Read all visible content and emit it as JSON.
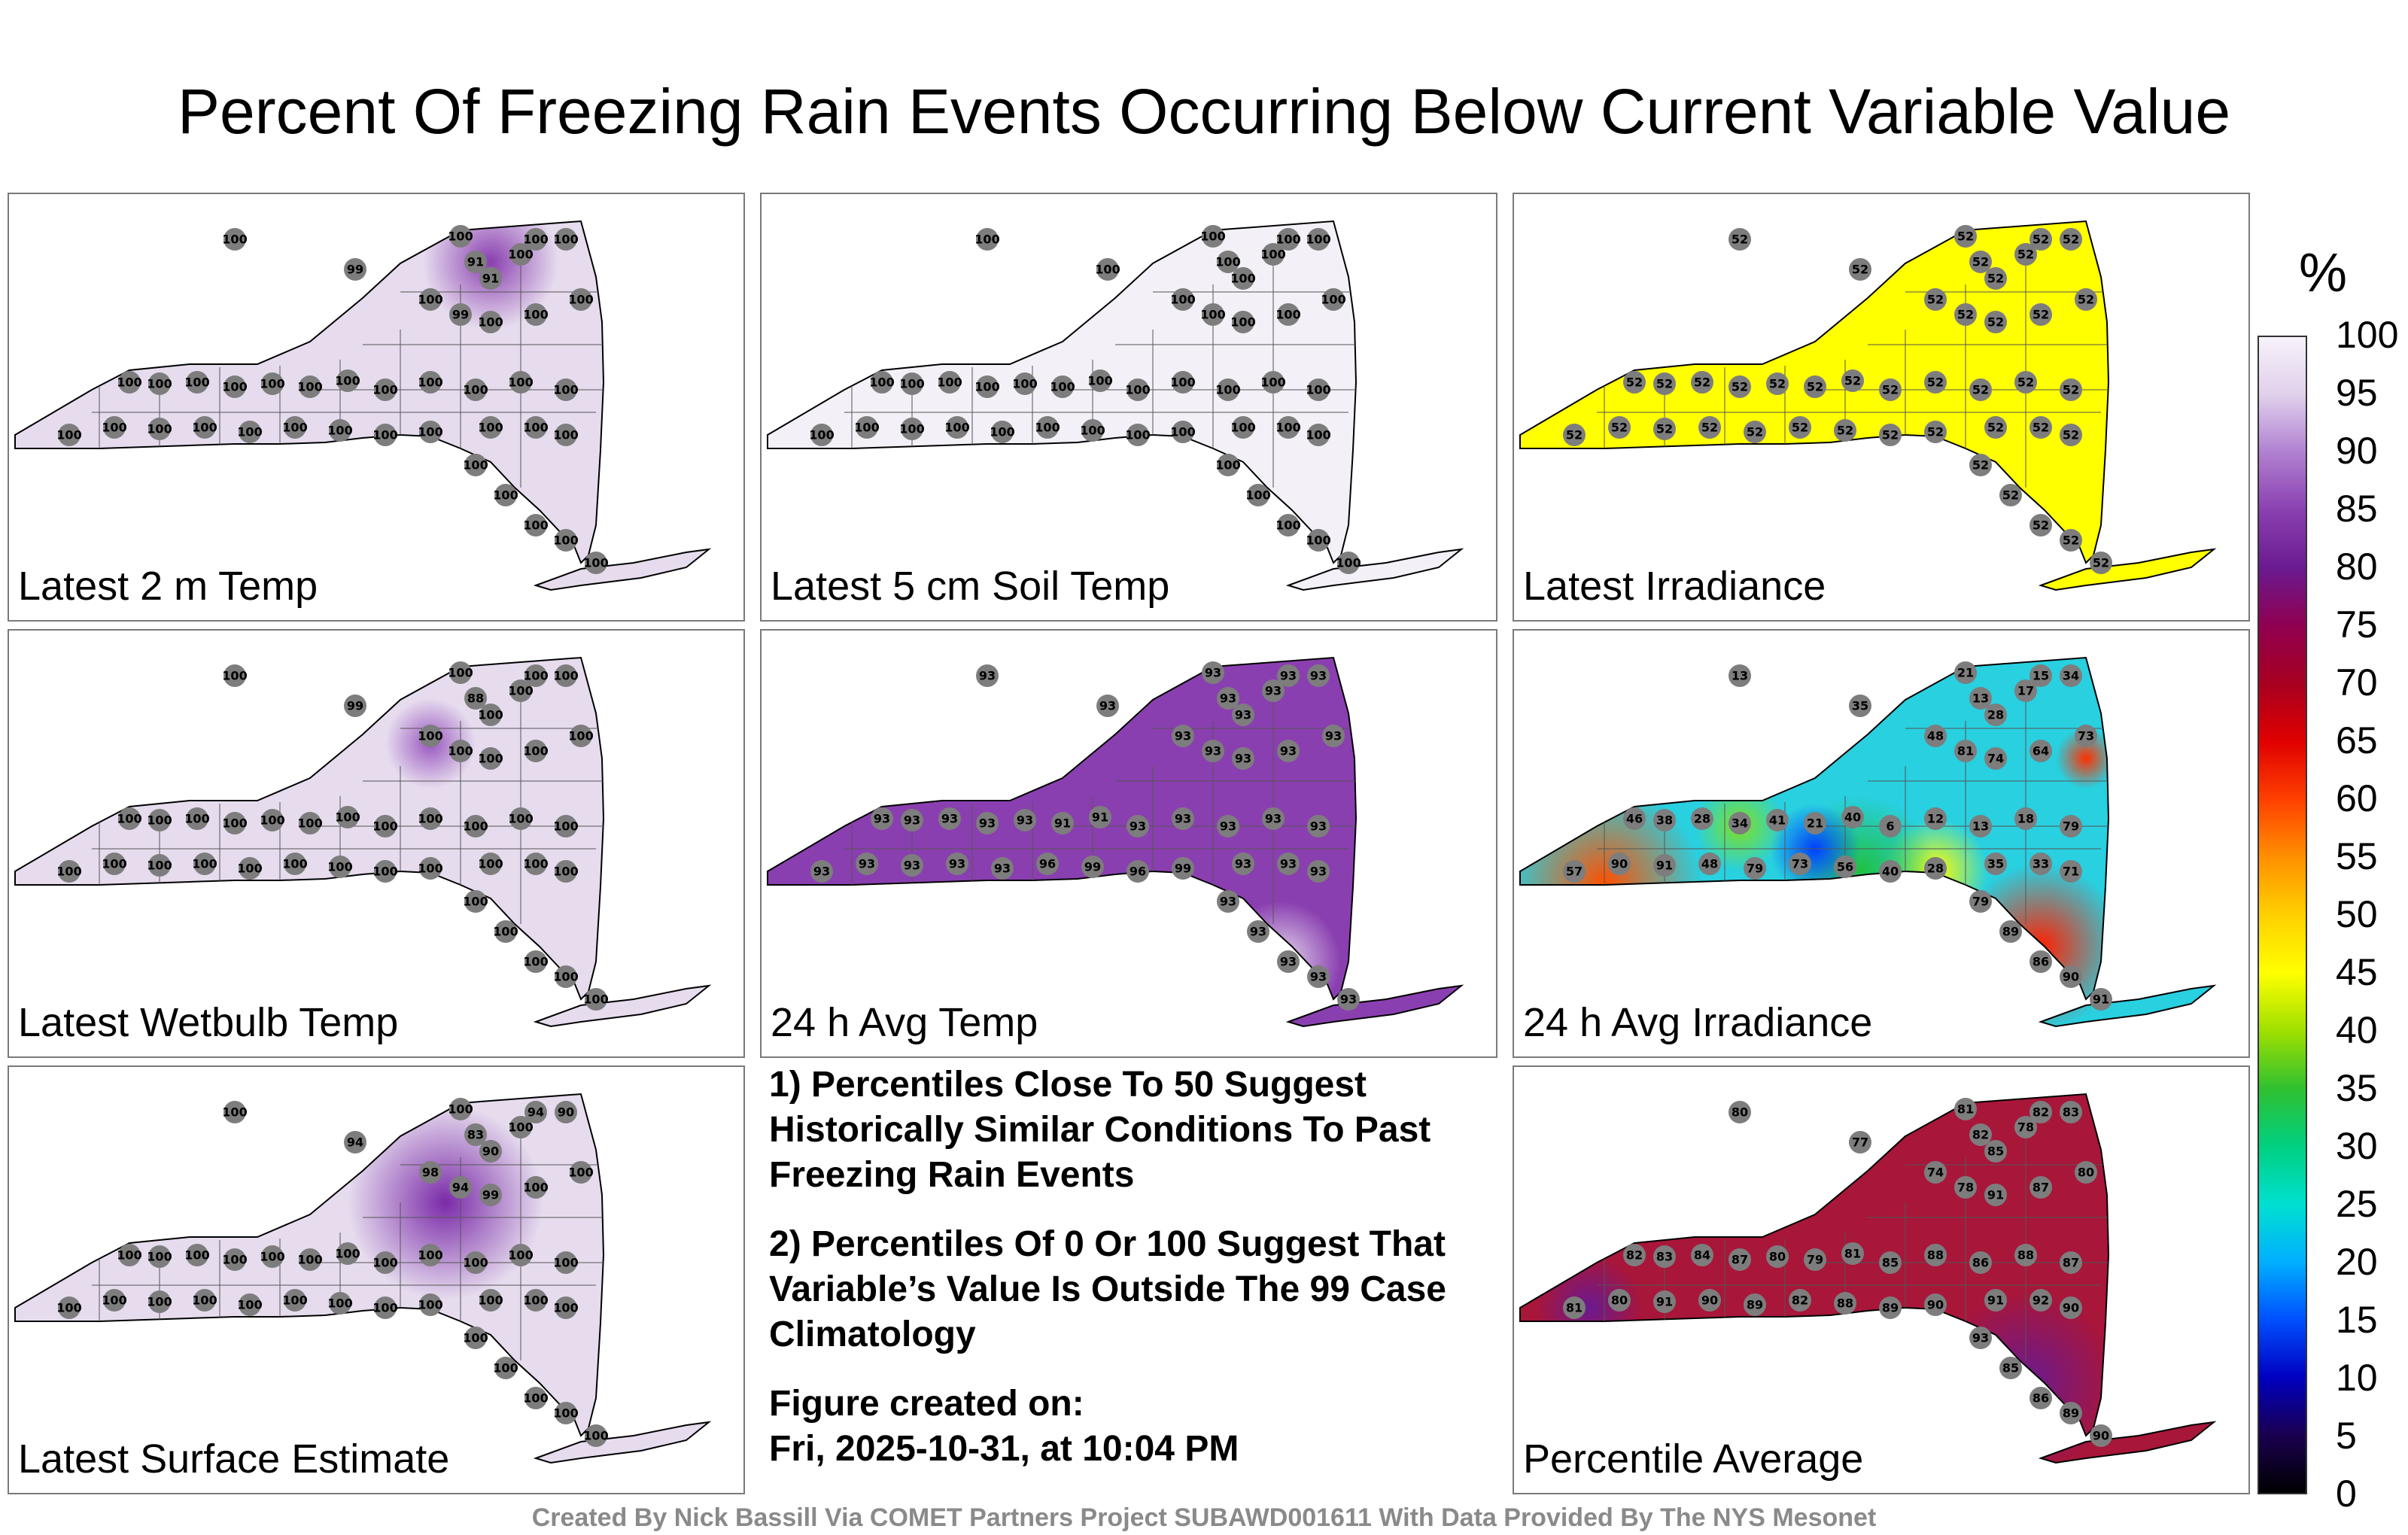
{
  "title": "Percent Of Freezing Rain Events Occurring Below Current Variable Value",
  "panels": [
    {
      "label": "Latest 2 m Temp",
      "fill": "#e6dcee",
      "values": [
        "100",
        "100",
        "100",
        "100",
        "100",
        "99",
        "91",
        "91",
        "100",
        "99",
        "100",
        "100",
        "100",
        "100",
        "100",
        "100",
        "100",
        "100",
        "100",
        "100",
        "100",
        "100",
        "100",
        "100",
        "100",
        "100",
        "100",
        "100",
        "100",
        "100",
        "100",
        "100",
        "100",
        "100",
        "100",
        "100",
        "100",
        "100",
        "100",
        "100",
        "100",
        "100"
      ]
    },
    {
      "label": "Latest 5 cm Soil Temp",
      "fill": "#f3f0f7",
      "values": [
        "100",
        "100",
        "100",
        "100",
        "100",
        "100",
        "100",
        "100",
        "100",
        "100",
        "100",
        "100",
        "100",
        "100",
        "100",
        "100",
        "100",
        "100",
        "100",
        "100",
        "100",
        "100",
        "100",
        "100",
        "100",
        "100",
        "100",
        "100",
        "100",
        "100",
        "100",
        "100",
        "100",
        "100",
        "100",
        "100",
        "100",
        "100",
        "100",
        "100",
        "100",
        "100"
      ]
    },
    {
      "label": "Latest Irradiance",
      "fill": "#ffff00",
      "values": [
        "52",
        "52",
        "52",
        "52",
        "52",
        "52",
        "52",
        "52",
        "52",
        "52",
        "52",
        "52",
        "52",
        "52",
        "52",
        "52",
        "52",
        "52",
        "52",
        "52",
        "52",
        "52",
        "52",
        "52",
        "52",
        "52",
        "52",
        "52",
        "52",
        "52",
        "52",
        "52",
        "52",
        "52",
        "52",
        "52",
        "52",
        "52",
        "52",
        "52",
        "52",
        "52"
      ]
    },
    {
      "label": "Latest Wetbulb Temp",
      "fill": "#e6dcee",
      "values": [
        "100",
        "100",
        "100",
        "100",
        "100",
        "99",
        "88",
        "100",
        "100",
        "100",
        "100",
        "100",
        "100",
        "100",
        "100",
        "100",
        "100",
        "100",
        "100",
        "100",
        "100",
        "100",
        "100",
        "100",
        "100",
        "100",
        "100",
        "100",
        "100",
        "100",
        "100",
        "100",
        "100",
        "100",
        "100",
        "100",
        "100",
        "100",
        "100",
        "100",
        "100",
        "100"
      ]
    },
    {
      "label": "24 h Avg Temp",
      "fill": "#8a3fb0",
      "values": [
        "93",
        "93",
        "93",
        "93",
        "93",
        "93",
        "93",
        "93",
        "93",
        "93",
        "93",
        "93",
        "93",
        "93",
        "93",
        "93",
        "93",
        "93",
        "91",
        "91",
        "93",
        "93",
        "93",
        "93",
        "93",
        "93",
        "93",
        "93",
        "93",
        "93",
        "96",
        "99",
        "96",
        "99",
        "93",
        "93",
        "93",
        "93",
        "93",
        "93",
        "93",
        "93"
      ]
    },
    {
      "label": "24 h Avg Irradiance",
      "fill": "#28d0e0",
      "values": [
        "13",
        "21",
        "17",
        "15",
        "34",
        "35",
        "13",
        "28",
        "48",
        "81",
        "74",
        "64",
        "73",
        "46",
        "38",
        "28",
        "34",
        "41",
        "21",
        "40",
        "6",
        "12",
        "13",
        "18",
        "79",
        "57",
        "90",
        "91",
        "48",
        "79",
        "73",
        "56",
        "40",
        "28",
        "35",
        "33",
        "71",
        "79",
        "89",
        "86",
        "90",
        "91"
      ]
    },
    {
      "label": "Latest Surface Estimate",
      "fill": "#e6dcee",
      "values": [
        "100",
        "100",
        "100",
        "94",
        "90",
        "94",
        "83",
        "90",
        "98",
        "94",
        "99",
        "100",
        "100",
        "100",
        "100",
        "100",
        "100",
        "100",
        "100",
        "100",
        "100",
        "100",
        "100",
        "100",
        "100",
        "100",
        "100",
        "100",
        "100",
        "100",
        "100",
        "100",
        "100",
        "100",
        "100",
        "100",
        "100",
        "100",
        "100",
        "100",
        "100",
        "100"
      ]
    },
    {
      "label": "Percentile Average",
      "fill": "#a8163a",
      "values": [
        "80",
        "81",
        "78",
        "82",
        "83",
        "77",
        "82",
        "85",
        "74",
        "78",
        "91",
        "87",
        "80",
        "82",
        "83",
        "84",
        "87",
        "80",
        "79",
        "81",
        "85",
        "88",
        "86",
        "88",
        "87",
        "81",
        "80",
        "91",
        "90",
        "89",
        "82",
        "88",
        "89",
        "90",
        "91",
        "92",
        "90",
        "93",
        "85",
        "86",
        "89",
        "90"
      ]
    }
  ],
  "notes": {
    "note1": "1) Percentiles Close To 50 Suggest Historically Similar Conditions To Past Freezing Rain Events",
    "note2": "2) Percentiles Of 0 Or 100 Suggest That Variable’s Value Is Outside The 99 Case Climatology",
    "created_label": "Figure created on:",
    "created_value": "Fri, 2025-10-31, at 10:04 PM"
  },
  "colorbar": {
    "unit": "%",
    "ticks": [
      "100",
      "95",
      "90",
      "85",
      "80",
      "75",
      "70",
      "65",
      "60",
      "55",
      "50",
      "45",
      "40",
      "35",
      "30",
      "25",
      "20",
      "15",
      "10",
      "5",
      "0"
    ],
    "colors": [
      "#000000",
      "#1a0050",
      "#0000c0",
      "#0050ff",
      "#00b0ff",
      "#00e0d0",
      "#00d080",
      "#30c030",
      "#a0e000",
      "#ffff00",
      "#ffd000",
      "#ff9000",
      "#ff4000",
      "#e00000",
      "#a80020",
      "#900050",
      "#6a1a90",
      "#8a40b0",
      "#b080d0",
      "#e0d0ec",
      "#f7f2fa"
    ]
  },
  "credit": "Created By Nick Bassill Via COMET Partners Project SUBAWD001611 With Data Provided By The NYS Mesonet"
}
